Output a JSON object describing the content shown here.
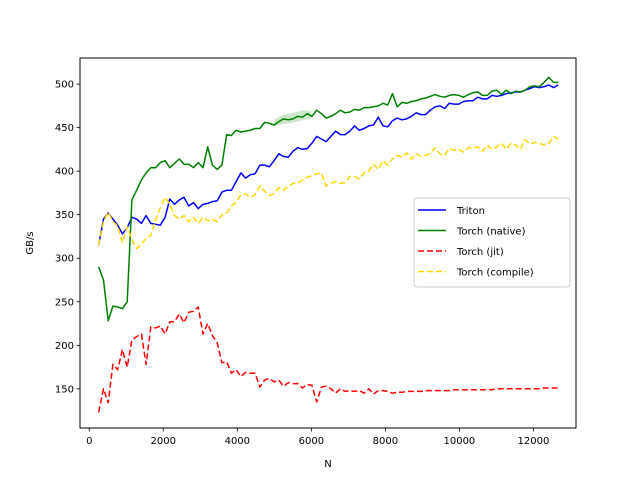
{
  "chart_data": {
    "type": "line",
    "title": "",
    "xlabel": "N",
    "ylabel": "GB/s",
    "xlim": [
      -250,
      13150
    ],
    "ylim": [
      105,
      530
    ],
    "xticks": [
      0,
      2000,
      4000,
      6000,
      8000,
      10000,
      12000
    ],
    "yticks": [
      150,
      200,
      250,
      300,
      350,
      400,
      450,
      500
    ],
    "grid": false,
    "legend_position": "center-right",
    "series": [
      {
        "name": "Triton",
        "color": "#0000ff",
        "dash": "solid",
        "x": [
          256,
          384,
          512,
          640,
          768,
          896,
          1024,
          1152,
          1280,
          1408,
          1536,
          1664,
          1792,
          1920,
          2048,
          2176,
          2304,
          2432,
          2560,
          2688,
          2816,
          2944,
          3072,
          3200,
          3328,
          3456,
          3584,
          3712,
          3840,
          3968,
          4096,
          4224,
          4352,
          4480,
          4608,
          4736,
          4864,
          4992,
          5120,
          5248,
          5376,
          5504,
          5632,
          5760,
          5888,
          6016,
          6144,
          6272,
          6400,
          6528,
          6656,
          6784,
          6912,
          7040,
          7168,
          7296,
          7424,
          7552,
          7680,
          7808,
          7936,
          8064,
          8192,
          8320,
          8448,
          8576,
          8704,
          8832,
          8960,
          9088,
          9216,
          9344,
          9472,
          9600,
          9728,
          9856,
          9984,
          10112,
          10240,
          10368,
          10496,
          10624,
          10752,
          10880,
          11008,
          11136,
          11264,
          11392,
          11520,
          11648,
          11776,
          11904,
          12032,
          12160,
          12288,
          12416,
          12544,
          12672
        ],
        "y": [
          315,
          345,
          352,
          345,
          338,
          328,
          335,
          347,
          345,
          340,
          349,
          340,
          339,
          338,
          347,
          368,
          362,
          367,
          370,
          360,
          364,
          357,
          362,
          363,
          365,
          366,
          376,
          378,
          378,
          388,
          398,
          392,
          396,
          397,
          407,
          407,
          405,
          412,
          420,
          417,
          416,
          423,
          427,
          425,
          426,
          432,
          440,
          437,
          434,
          440,
          446,
          442,
          442,
          446,
          452,
          447,
          449,
          452,
          453,
          462,
          452,
          451,
          458,
          461,
          459,
          460,
          463,
          467,
          465,
          465,
          470,
          474,
          475,
          472,
          478,
          477,
          477,
          480,
          481,
          481,
          485,
          483,
          483,
          487,
          486,
          487,
          489,
          490,
          491,
          491,
          493,
          495,
          497,
          496,
          497,
          499,
          496,
          499
        ]
      },
      {
        "name": "Torch (native)",
        "color": "#008000",
        "dash": "solid",
        "x": [
          256,
          384,
          512,
          640,
          768,
          896,
          1024,
          1152,
          1280,
          1408,
          1536,
          1664,
          1792,
          1920,
          2048,
          2176,
          2304,
          2432,
          2560,
          2688,
          2816,
          2944,
          3072,
          3200,
          3328,
          3456,
          3584,
          3712,
          3840,
          3968,
          4096,
          4224,
          4352,
          4480,
          4608,
          4736,
          4864,
          4992,
          5120,
          5248,
          5376,
          5504,
          5632,
          5760,
          5888,
          6016,
          6144,
          6272,
          6400,
          6528,
          6656,
          6784,
          6912,
          7040,
          7168,
          7296,
          7424,
          7552,
          7680,
          7808,
          7936,
          8064,
          8192,
          8320,
          8448,
          8576,
          8704,
          8832,
          8960,
          9088,
          9216,
          9344,
          9472,
          9600,
          9728,
          9856,
          9984,
          10112,
          10240,
          10368,
          10496,
          10624,
          10752,
          10880,
          11008,
          11136,
          11264,
          11392,
          11520,
          11648,
          11776,
          11904,
          12032,
          12160,
          12288,
          12416,
          12544,
          12672
        ],
        "y": [
          290,
          275,
          228,
          245,
          244,
          242,
          250,
          367,
          378,
          390,
          398,
          404,
          404,
          410,
          412,
          404,
          409,
          414,
          408,
          408,
          404,
          410,
          404,
          428,
          407,
          402,
          407,
          442,
          441,
          447,
          445,
          446,
          447,
          449,
          449,
          456,
          455,
          453,
          457,
          460,
          459,
          460,
          463,
          462,
          466,
          463,
          470,
          466,
          461,
          463,
          466,
          470,
          467,
          468,
          471,
          470,
          473,
          473,
          474,
          475,
          478,
          476,
          489,
          474,
          479,
          478,
          480,
          481,
          483,
          484,
          486,
          488,
          486,
          485,
          487,
          488,
          487,
          485,
          488,
          490,
          491,
          487,
          487,
          492,
          493,
          488,
          493,
          489,
          492,
          491,
          493,
          497,
          498,
          497,
          502,
          508,
          502,
          502
        ]
      },
      {
        "name": "Torch (jit)",
        "color": "#ff0000",
        "dash": "dashed",
        "x": [
          256,
          384,
          512,
          640,
          768,
          896,
          1024,
          1152,
          1280,
          1408,
          1536,
          1664,
          1792,
          1920,
          2048,
          2176,
          2304,
          2432,
          2560,
          2688,
          2816,
          2944,
          3072,
          3200,
          3328,
          3456,
          3584,
          3712,
          3840,
          3968,
          4096,
          4224,
          4352,
          4480,
          4608,
          4736,
          4864,
          4992,
          5120,
          5248,
          5376,
          5504,
          5632,
          5760,
          5888,
          6016,
          6144,
          6272,
          6400,
          6528,
          6656,
          6784,
          6912,
          7040,
          7168,
          7296,
          7424,
          7552,
          7680,
          7808,
          7936,
          8064,
          8192,
          8320,
          8448,
          8576,
          8704,
          8832,
          8960,
          9088,
          9216,
          9344,
          9472,
          9600,
          9728,
          9856,
          9984,
          10112,
          10240,
          10368,
          10496,
          10624,
          10752,
          10880,
          11008,
          11136,
          11264,
          11392,
          11520,
          11648,
          11776,
          11904,
          12032,
          12160,
          12288,
          12416,
          12544,
          12672
        ],
        "y": [
          123,
          150,
          134,
          178,
          172,
          195,
          175,
          206,
          210,
          213,
          178,
          221,
          220,
          222,
          213,
          227,
          227,
          236,
          226,
          238,
          239,
          244,
          213,
          225,
          211,
          203,
          180,
          181,
          168,
          172,
          164,
          169,
          168,
          168,
          152,
          160,
          162,
          158,
          160,
          153,
          157,
          156,
          156,
          151,
          155,
          154,
          135,
          152,
          153,
          150,
          145,
          150,
          147,
          148,
          147,
          148,
          145,
          150,
          144,
          148,
          148,
          147,
          145,
          146,
          146,
          147,
          147,
          147,
          147,
          148,
          148,
          148,
          148,
          148,
          148,
          149,
          149,
          149,
          149,
          149,
          149,
          149,
          149,
          149,
          150,
          150,
          150,
          150,
          150,
          150,
          150,
          150,
          150,
          150,
          151,
          151,
          151,
          151
        ]
      },
      {
        "name": "Torch (compile)",
        "color": "#ffd700",
        "dash": "dashed",
        "x": [
          256,
          384,
          512,
          640,
          768,
          896,
          1024,
          1152,
          1280,
          1408,
          1536,
          1664,
          1792,
          1920,
          2048,
          2176,
          2304,
          2432,
          2560,
          2688,
          2816,
          2944,
          3072,
          3200,
          3328,
          3456,
          3584,
          3712,
          3840,
          3968,
          4096,
          4224,
          4352,
          4480,
          4608,
          4736,
          4864,
          4992,
          5120,
          5248,
          5376,
          5504,
          5632,
          5760,
          5888,
          6016,
          6144,
          6272,
          6400,
          6528,
          6656,
          6784,
          6912,
          7040,
          7168,
          7296,
          7424,
          7552,
          7680,
          7808,
          7936,
          8064,
          8192,
          8320,
          8448,
          8576,
          8704,
          8832,
          8960,
          9088,
          9216,
          9344,
          9472,
          9600,
          9728,
          9856,
          9984,
          10112,
          10240,
          10368,
          10496,
          10624,
          10752,
          10880,
          11008,
          11136,
          11264,
          11392,
          11520,
          11648,
          11776,
          11904,
          12032,
          12160,
          12288,
          12416,
          12544,
          12672
        ],
        "y": [
          315,
          342,
          353,
          342,
          337,
          318,
          336,
          322,
          311,
          316,
          323,
          326,
          344,
          358,
          370,
          362,
          349,
          345,
          349,
          342,
          347,
          340,
          347,
          343,
          345,
          342,
          350,
          352,
          360,
          364,
          373,
          374,
          370,
          373,
          383,
          377,
          372,
          374,
          381,
          378,
          383,
          386,
          386,
          390,
          393,
          395,
          397,
          398,
          383,
          386,
          388,
          386,
          387,
          394,
          394,
          391,
          398,
          400,
          408,
          402,
          412,
          407,
          414,
          418,
          416,
          421,
          414,
          420,
          417,
          418,
          421,
          427,
          420,
          418,
          426,
          424,
          425,
          422,
          427,
          426,
          428,
          423,
          430,
          425,
          428,
          432,
          425,
          432,
          430,
          425,
          436,
          431,
          433,
          432,
          430,
          432,
          440,
          437
        ]
      }
    ],
    "confidence_band": {
      "series": "Torch (native)",
      "color": "#008000",
      "x": [
        5000,
        5200,
        5400,
        5600,
        5800,
        6000
      ],
      "y_low": [
        451,
        454,
        455,
        457,
        459,
        460
      ],
      "y_high": [
        459,
        464,
        466,
        468,
        470,
        469
      ]
    }
  }
}
